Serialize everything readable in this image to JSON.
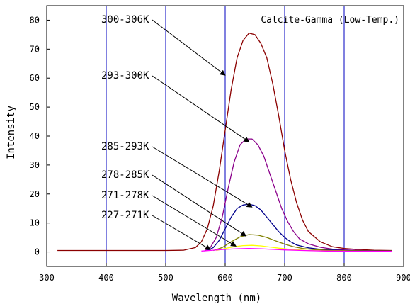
{
  "chart_data": {
    "type": "line",
    "title": "Calcite-Gamma (Low-Temp.)",
    "xlabel": "Wavelength (nm)",
    "ylabel": "Intensity",
    "xlim": [
      300,
      900
    ],
    "ylim": [
      -5,
      85
    ],
    "xticks": [
      300,
      400,
      500,
      600,
      700,
      800,
      900
    ],
    "yticks": [
      0,
      10,
      20,
      30,
      40,
      50,
      60,
      70,
      80
    ],
    "vertical_gridlines": [
      400,
      500,
      600,
      700,
      800
    ],
    "gridline_color": "#0000c0",
    "series": [
      {
        "name": "300-306K",
        "color": "#8b0000",
        "x": [
          318,
          400,
          500,
          530,
          550,
          560,
          570,
          580,
          590,
          600,
          610,
          620,
          630,
          640,
          650,
          660,
          670,
          680,
          690,
          700,
          710,
          720,
          730,
          740,
          760,
          780,
          800,
          820,
          850,
          880
        ],
        "y": [
          0.5,
          0.5,
          0.5,
          0.6,
          1.5,
          3.5,
          8.0,
          16.0,
          28.0,
          42.0,
          56.0,
          67.0,
          73.0,
          75.5,
          75.0,
          72.0,
          67.0,
          58.0,
          47.0,
          35.0,
          25.0,
          17.0,
          11.0,
          7.0,
          3.5,
          1.8,
          1.2,
          0.9,
          0.6,
          0.5
        ],
        "label_points_to": [
          600,
          61
        ]
      },
      {
        "name": "293-300K",
        "color": "#8b008b",
        "x": [
          565,
          575,
          585,
          595,
          605,
          615,
          625,
          635,
          645,
          655,
          665,
          675,
          685,
          695,
          705,
          715,
          725,
          740,
          760,
          780,
          800,
          830,
          860,
          880
        ],
        "y": [
          0.3,
          1.5,
          5.0,
          12.0,
          22.0,
          31.0,
          37.0,
          39.0,
          39.0,
          37.0,
          33.0,
          27.0,
          21.0,
          15.0,
          10.5,
          7.0,
          4.5,
          2.8,
          1.6,
          1.0,
          0.7,
          0.5,
          0.4,
          0.4
        ],
        "label_points_to": [
          640,
          38
        ]
      },
      {
        "name": "285-293K",
        "color": "#00008b",
        "x": [
          570,
          580,
          590,
          600,
          610,
          620,
          630,
          640,
          650,
          660,
          670,
          680,
          690,
          700,
          710,
          720,
          740,
          760,
          790,
          820,
          860,
          880
        ],
        "y": [
          0.5,
          1.5,
          4.0,
          8.0,
          12.0,
          15.0,
          16.2,
          16.5,
          16.0,
          14.5,
          12.0,
          9.5,
          7.0,
          5.0,
          3.5,
          2.4,
          1.4,
          0.9,
          0.6,
          0.4,
          0.3,
          0.3
        ],
        "label_points_to": [
          645,
          15.5
        ]
      },
      {
        "name": "278-285K",
        "color": "#808000",
        "x": [
          580,
          595,
          610,
          625,
          640,
          655,
          670,
          685,
          700,
          715,
          730,
          750,
          780,
          810,
          850,
          880
        ],
        "y": [
          0.5,
          1.5,
          3.5,
          5.2,
          6.0,
          5.8,
          5.0,
          3.8,
          2.7,
          1.8,
          1.2,
          0.8,
          0.5,
          0.4,
          0.3,
          0.3
        ],
        "label_points_to": [
          635,
          5.5
        ]
      },
      {
        "name": "271-278K",
        "color": "#ffff00",
        "x": [
          585,
          600,
          615,
          630,
          645,
          660,
          675,
          690,
          710,
          740,
          780,
          830,
          880
        ],
        "y": [
          0.5,
          1.2,
          1.8,
          2.2,
          2.3,
          2.1,
          1.7,
          1.3,
          0.9,
          0.5,
          0.3,
          0.2,
          0.2
        ],
        "label_points_to": [
          618,
          2.0
        ]
      },
      {
        "name": "227-271K",
        "color": "#ff00ff",
        "x": [
          560,
          580,
          600,
          620,
          640,
          660,
          680,
          700,
          730,
          770,
          820,
          880
        ],
        "y": [
          0.3,
          0.6,
          0.9,
          1.1,
          1.2,
          1.1,
          0.9,
          0.7,
          0.5,
          0.3,
          0.2,
          0.2
        ],
        "label_points_to": [
          575,
          0.8
        ]
      }
    ]
  }
}
